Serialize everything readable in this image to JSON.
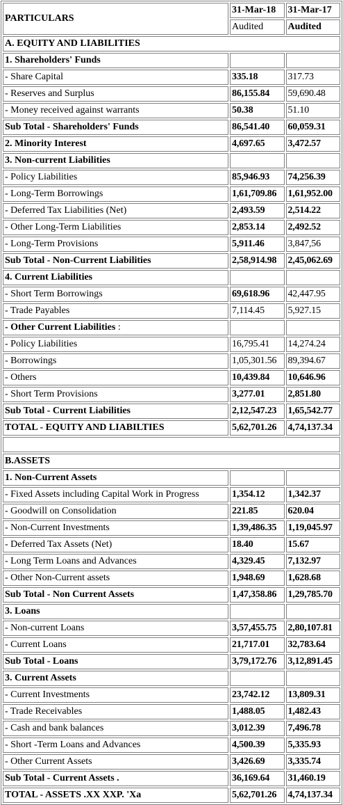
{
  "header": {
    "particulars": "PARTICULARS",
    "col1_date": "31-Mar-18",
    "col2_date": "31-Mar-17",
    "col1_status": "Audited",
    "col2_status": "Audited"
  },
  "rows": [
    {
      "label": "A. EQUITY AND LIABILITIES",
      "v1": "",
      "v2": "",
      "bl": true,
      "b1": false,
      "b2": false,
      "span": true
    },
    {
      "label": "1. Shareholders' Funds",
      "v1": "",
      "v2": "",
      "bl": true,
      "b1": false,
      "b2": false
    },
    {
      "label": "- Share Capital",
      "v1": "335.18",
      "v2": "317.73",
      "bl": false,
      "b1": true,
      "b2": false
    },
    {
      "label": "- Reserves and Surplus",
      "v1": "86,155.84",
      "v2": "59,690.48",
      "bl": false,
      "b1": true,
      "b2": false
    },
    {
      "label": "- Money received against warrants",
      "v1": "50.38",
      "v2": "51.10",
      "bl": false,
      "b1": true,
      "b2": false
    },
    {
      "label": "Sub Total - Shareholders' Funds",
      "v1": "86,541.40",
      "v2": "60,059.31",
      "bl": true,
      "b1": true,
      "b2": true
    },
    {
      "label": "2. Minority Interest",
      "v1": "4,697.65",
      "v2": "3,472.57",
      "bl": true,
      "b1": true,
      "b2": true
    },
    {
      "label": "3. Non-current Liabilities",
      "v1": "",
      "v2": "",
      "bl": true,
      "b1": false,
      "b2": false
    },
    {
      "label": "- Policy Liabilities",
      "v1": "85,946.93",
      "v2": "74,256.39",
      "bl": false,
      "b1": true,
      "b2": true
    },
    {
      "label": "- Long-Term Borrowings",
      "v1": "1,61,709.86",
      "v2": "1,61,952.00",
      "bl": false,
      "b1": true,
      "b2": true
    },
    {
      "label": "- Deferred Tax Liabilities (Net)",
      "v1": "2,493.59",
      "v2": "2,514.22",
      "bl": false,
      "b1": true,
      "b2": true
    },
    {
      "label": "- Other Long-Term Liabilities",
      "v1": "2,853.14",
      "v2": "2,492.52",
      "bl": false,
      "b1": true,
      "b2": true
    },
    {
      "label": "- Long-Term Provisions",
      "v1": "5,911.46",
      "v2": "3,847,56",
      "bl": false,
      "b1": true,
      "b2": false
    },
    {
      "label": "Sub Total - Non-Current Liabilities",
      "v1": "2,58,914.98",
      "v2": "2,45,062.69",
      "bl": true,
      "b1": true,
      "b2": true
    },
    {
      "label": "4. Current Liabilities",
      "v1": "",
      "v2": "",
      "bl": true,
      "b1": false,
      "b2": false
    },
    {
      "label": "- Short Term Borrowings",
      "v1": "69,618.96",
      "v2": "42,447.95",
      "bl": false,
      "b1": true,
      "b2": false
    },
    {
      "label": "- Trade Payables",
      "v1": "7,114.45",
      "v2": "5,927.15",
      "bl": false,
      "b1": false,
      "b2": false
    },
    {
      "label": "- Other Current Liabilities",
      "suffix": " :",
      "v1": "",
      "v2": "",
      "bl": true,
      "b1": false,
      "b2": false
    },
    {
      "label": "- Policy Liabilities",
      "v1": "16,795.41",
      "v2": "14,274.24",
      "bl": false,
      "b1": false,
      "b2": false
    },
    {
      "label": "- Borrowings",
      "v1": "1,05,301.56",
      "v2": "89,394.67",
      "bl": false,
      "b1": false,
      "b2": false
    },
    {
      "label": "- Others",
      "v1": "10,439.84",
      "v2": "10,646.96",
      "bl": false,
      "b1": true,
      "b2": true
    },
    {
      "label": "- Short Term Provisions",
      "v1": "3,277.01",
      "v2": "2,851.80",
      "bl": false,
      "b1": true,
      "b2": true
    },
    {
      "label": "Sub Total - Current Liabilities",
      "v1": "2,12,547.23",
      "v2": "1,65,542.77",
      "bl": true,
      "b1": true,
      "b2": true
    },
    {
      "label": "TOTAL - EQUITY AND LIABILTIES",
      "v1": "5,62,701.26",
      "v2": "4,74,137.34",
      "bl": true,
      "b1": true,
      "b2": true
    },
    {
      "gap": true
    },
    {
      "label": "B.ASSETS",
      "v1": "",
      "v2": "",
      "bl": true,
      "b1": false,
      "b2": false,
      "span": true
    },
    {
      "label": "1. Non-Current Assets",
      "v1": "",
      "v2": "",
      "bl": true,
      "b1": false,
      "b2": false
    },
    {
      "label": "- Fixed Assets including Capital Work in Progress",
      "v1": "1,354.12",
      "v2": "1,342.37",
      "bl": false,
      "b1": true,
      "b2": true
    },
    {
      "label": "- Goodwill on Consolidation",
      "v1": "221.85",
      "v2": "620.04",
      "bl": false,
      "b1": true,
      "b2": true
    },
    {
      "label": "- Non-Current Investments",
      "v1": "1,39,486.35",
      "v2": "1,19,045.97",
      "bl": false,
      "b1": true,
      "b2": true
    },
    {
      "label": "- Deferred Tax Assets (Net)",
      "v1": "18.40",
      "v2": "15.67",
      "bl": false,
      "b1": true,
      "b2": true
    },
    {
      "label": "- Long Term Loans and Advances",
      "v1": "4,329.45",
      "v2": "7,132.97",
      "bl": false,
      "b1": true,
      "b2": true
    },
    {
      "label": "- Other Non-Current assets",
      "v1": "1,948.69",
      "v2": "1,628.68",
      "bl": false,
      "b1": true,
      "b2": true
    },
    {
      "label": "Sub Total - Non Current Assets",
      "v1": "1,47,358.86",
      "v2": "1,29,785.70",
      "bl": true,
      "b1": true,
      "b2": true
    },
    {
      "label": "3. Loans",
      "v1": "",
      "v2": "",
      "bl": true,
      "b1": false,
      "b2": false
    },
    {
      "label": "- Non-current Loans",
      "v1": "3,57,455.75",
      "v2": "2,80,107.81",
      "bl": false,
      "b1": true,
      "b2": true
    },
    {
      "label": "- Current Loans",
      "v1": "21,717.01",
      "v2": "32,783.64",
      "bl": false,
      "b1": true,
      "b2": true
    },
    {
      "label": "Sub Total - Loans",
      "v1": "3,79,172.76",
      "v2": "3,12,891.45",
      "bl": true,
      "b1": true,
      "b2": true
    },
    {
      "label": "3. Current Assets",
      "v1": "",
      "v2": "",
      "bl": true,
      "b1": false,
      "b2": false
    },
    {
      "label": "- Current Investments",
      "v1": "23,742.12",
      "v2": "13,809.31",
      "bl": false,
      "b1": true,
      "b2": true
    },
    {
      "label": "- Trade Receivables",
      "v1": "1,488.05",
      "v2": "1,482.43",
      "bl": false,
      "b1": true,
      "b2": true
    },
    {
      "label": "- Cash and bank balances",
      "v1": "3,012.39",
      "v2": "7,496.78",
      "bl": false,
      "b1": true,
      "b2": true
    },
    {
      "label": "- Short -Term Loans and Advances",
      "v1": "4,500.39",
      "v2": "5,335.93",
      "bl": false,
      "b1": true,
      "b2": true
    },
    {
      "label": "- Other Current Assets",
      "v1": "3,426.69",
      "v2": "3,335.74",
      "bl": false,
      "b1": true,
      "b2": true
    },
    {
      "label": "Sub Total - Current Assets .",
      "v1": "36,169.64",
      "v2": "31,460.19",
      "bl": true,
      "b1": true,
      "b2": true
    },
    {
      "label": "TOTAL - ASSETS .XX XXP. 'Xa",
      "v1": "5,62,701.26",
      "v2": "4,74,137.34",
      "bl": true,
      "b1": true,
      "b2": true
    }
  ]
}
